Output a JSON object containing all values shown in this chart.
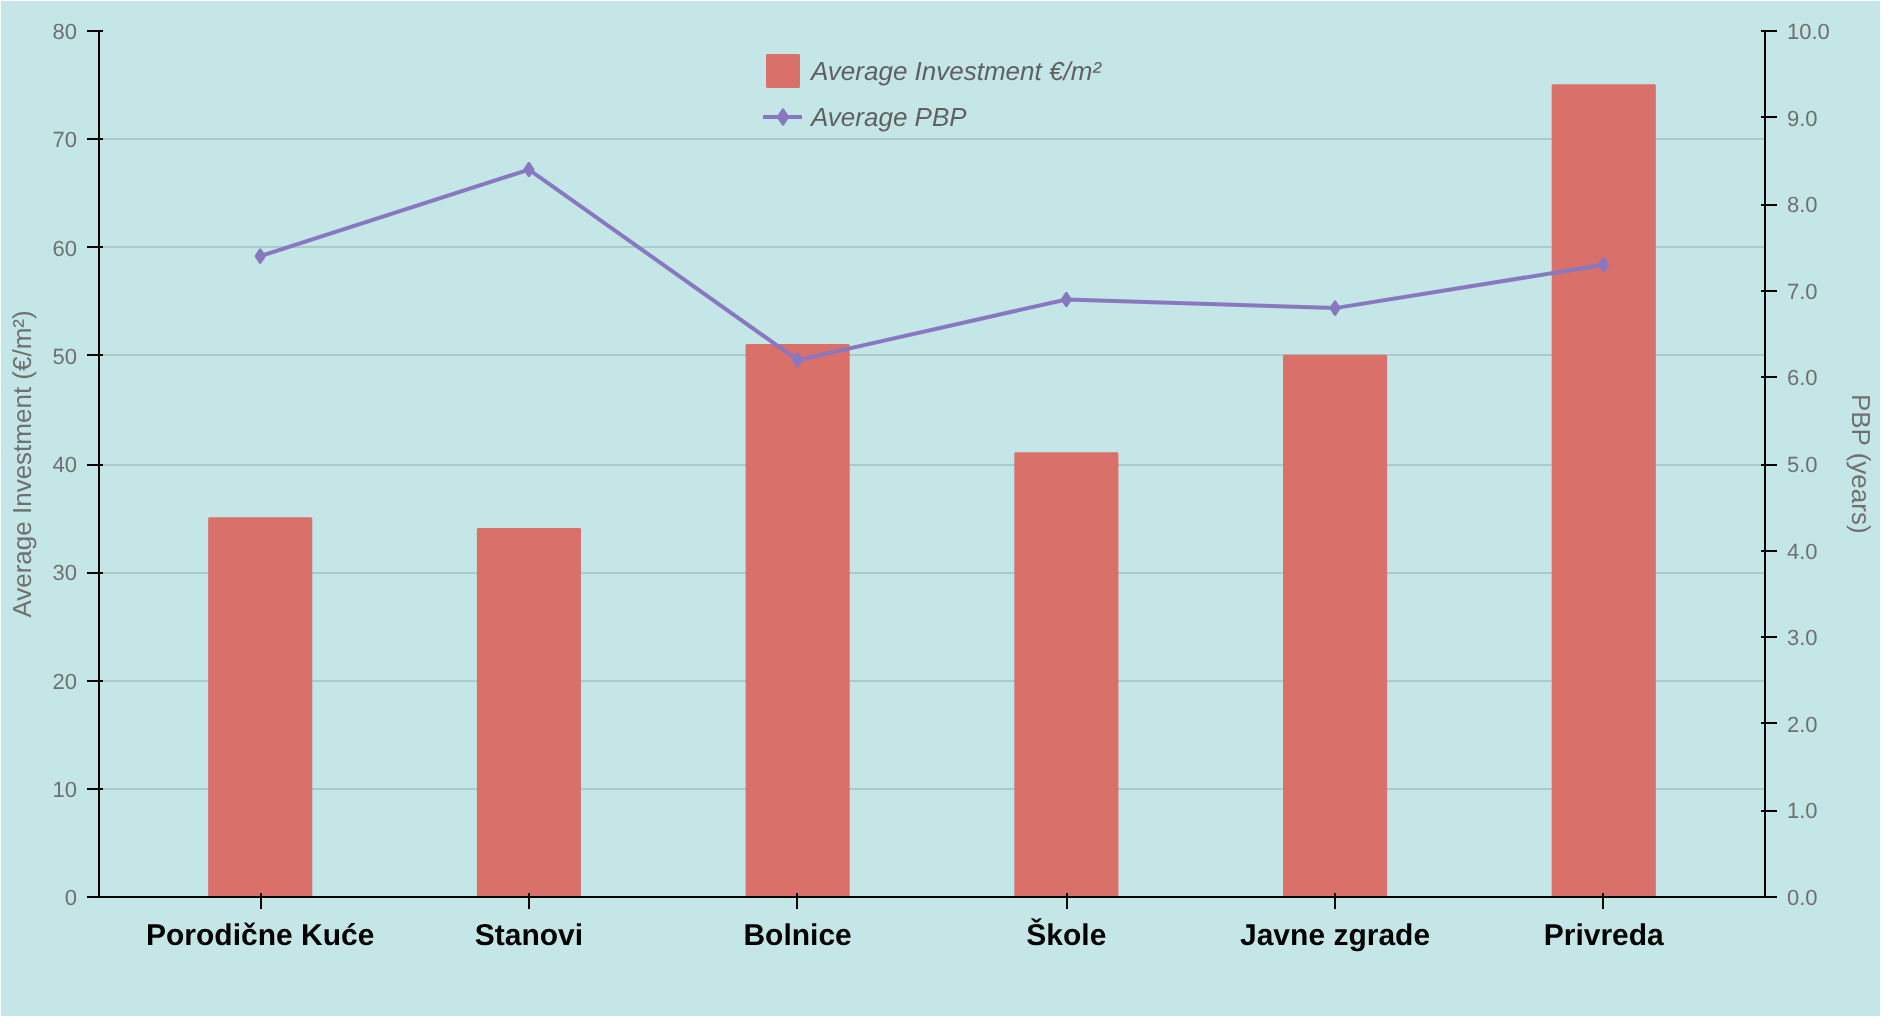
{
  "chart_data": {
    "type": "bar",
    "categories": [
      "Porodične Kuće",
      "Stanovi",
      "Bolnice",
      "Škole",
      "Javne zgrade",
      "Privreda"
    ],
    "ylabel": "Average Investment (€/m²)",
    "y2label": "PBP (years)",
    "ylim": [
      0,
      80
    ],
    "yticks": [
      0,
      10,
      20,
      30,
      40,
      50,
      60,
      70,
      80
    ],
    "y2lim": [
      0,
      10
    ],
    "y2ticks": [
      {
        "value": 0,
        "label": "0.0"
      },
      {
        "value": 1,
        "label": "1.0"
      },
      {
        "value": 2,
        "label": "2.0"
      },
      {
        "value": 3,
        "label": "3.0"
      },
      {
        "value": 4,
        "label": "4.0"
      },
      {
        "value": 5,
        "label": "5.0"
      },
      {
        "value": 6,
        "label": "6.0"
      },
      {
        "value": 7,
        "label": "7.0"
      },
      {
        "value": 8,
        "label": "8.0"
      },
      {
        "value": 9,
        "label": "9.0"
      },
      {
        "value": 10,
        "label": "10.0"
      }
    ],
    "grid": "y",
    "legend": "top",
    "marker": "diamond",
    "series": [
      {
        "name": "Average Investment €/m²",
        "color": "#d9706a",
        "values": [
          35,
          34,
          51,
          41,
          50,
          75
        ]
      },
      {
        "name": "Average PBP",
        "type": "line",
        "axis": "y2",
        "color": "#8878c0",
        "values": [
          7.4,
          8.4,
          6.2,
          6.9,
          6.8,
          7.3
        ]
      }
    ]
  }
}
